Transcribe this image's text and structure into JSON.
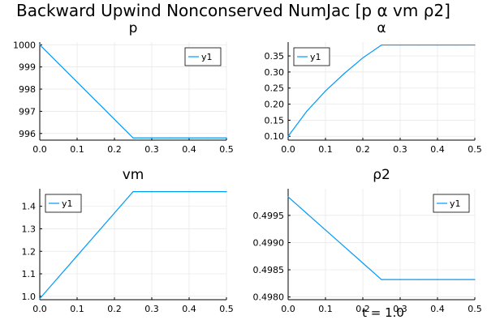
{
  "figure": {
    "title": "Backward Upwind Nonconserved NumJac [p α vm ρ2]",
    "footer": "t = 1.0",
    "line_color": "#009AFA"
  },
  "chart_data": [
    {
      "type": "line",
      "title": "p",
      "xlim": [
        0.0,
        0.5
      ],
      "ylim": [
        995.7,
        1000.12
      ],
      "xticks": [
        0.0,
        0.1,
        0.2,
        0.3,
        0.4,
        0.5
      ],
      "xtick_labels": [
        "0.0",
        "0.1",
        "0.2",
        "0.3",
        "0.4",
        "0.5"
      ],
      "yticks": [
        996,
        997,
        998,
        999,
        1000
      ],
      "ytick_labels": [
        "996",
        "997",
        "998",
        "999",
        "1000"
      ],
      "grid": true,
      "legend_position": "top-right",
      "series": [
        {
          "name": "y1",
          "x": [
            0.0,
            0.05,
            0.1,
            0.15,
            0.2,
            0.25,
            0.3,
            0.35,
            0.4,
            0.45,
            0.5
          ],
          "y": [
            1000.0,
            999.16,
            998.32,
            997.48,
            996.64,
            995.8,
            995.8,
            995.8,
            995.8,
            995.8,
            995.8
          ]
        }
      ]
    },
    {
      "type": "line",
      "title": "α",
      "xlim": [
        0.0,
        0.5
      ],
      "ylim": [
        0.088,
        0.393
      ],
      "xticks": [
        0.0,
        0.1,
        0.2,
        0.3,
        0.4,
        0.5
      ],
      "xtick_labels": [
        "0.0",
        "0.1",
        "0.2",
        "0.3",
        "0.4",
        "0.5"
      ],
      "yticks": [
        0.1,
        0.15,
        0.2,
        0.25,
        0.3,
        0.35
      ],
      "ytick_labels": [
        "0.10",
        "0.15",
        "0.20",
        "0.25",
        "0.30",
        "0.35"
      ],
      "grid": true,
      "legend_position": "top-left",
      "series": [
        {
          "name": "y1",
          "x": [
            0.0,
            0.05,
            0.1,
            0.15,
            0.2,
            0.25,
            0.3,
            0.35,
            0.4,
            0.45,
            0.5
          ],
          "y": [
            0.1,
            0.178,
            0.241,
            0.295,
            0.344,
            0.384,
            0.384,
            0.384,
            0.384,
            0.384,
            0.384
          ]
        }
      ]
    },
    {
      "type": "line",
      "title": "vm",
      "xlim": [
        0.0,
        0.5
      ],
      "ylim": [
        0.985,
        1.478
      ],
      "xticks": [
        0.0,
        0.1,
        0.2,
        0.3,
        0.4,
        0.5
      ],
      "xtick_labels": [
        "0.0",
        "0.1",
        "0.2",
        "0.3",
        "0.4",
        "0.5"
      ],
      "yticks": [
        1.0,
        1.1,
        1.2,
        1.3,
        1.4
      ],
      "ytick_labels": [
        "1.0",
        "1.1",
        "1.2",
        "1.3",
        "1.4"
      ],
      "grid": true,
      "legend_position": "top-left",
      "series": [
        {
          "name": "y1",
          "x": [
            0.0,
            0.05,
            0.1,
            0.15,
            0.2,
            0.25,
            0.3,
            0.35,
            0.4,
            0.45,
            0.5
          ],
          "y": [
            0.99,
            1.085,
            1.18,
            1.275,
            1.37,
            1.465,
            1.465,
            1.465,
            1.465,
            1.465,
            1.465
          ]
        }
      ]
    },
    {
      "type": "line",
      "title": "ρ2",
      "xlim": [
        0.0,
        0.5
      ],
      "ylim": [
        0.49795,
        0.49999
      ],
      "xticks": [
        0.0,
        0.1,
        0.2,
        0.3,
        0.4,
        0.5
      ],
      "xtick_labels": [
        "0.0",
        "0.1",
        "0.2",
        "0.3",
        "0.4",
        "0.5"
      ],
      "yticks": [
        0.498,
        0.4985,
        0.499,
        0.4995
      ],
      "ytick_labels": [
        "0.4980",
        "0.4985",
        "0.4990",
        "0.4995"
      ],
      "grid": true,
      "legend_position": "top-right",
      "series": [
        {
          "name": "y1",
          "x": [
            0.0,
            0.05,
            0.1,
            0.15,
            0.2,
            0.25,
            0.3,
            0.35,
            0.4,
            0.45,
            0.5
          ],
          "y": [
            0.49984,
            0.499536,
            0.499232,
            0.498928,
            0.498624,
            0.49832,
            0.49832,
            0.49832,
            0.49832,
            0.49832,
            0.49832
          ]
        }
      ]
    }
  ]
}
